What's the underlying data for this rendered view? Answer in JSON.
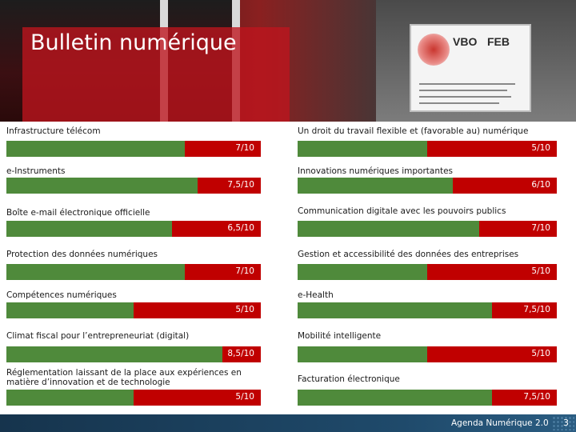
{
  "title": "Bulletin numérique",
  "sign": {
    "left_text": "VBO",
    "right_text": "FEB"
  },
  "colors": {
    "good": "#4f8a3b",
    "gap": "#c00000",
    "footer": "#1f4a6b"
  },
  "scale_max": 10,
  "left_items": [
    {
      "label": "Infrastructure télécom",
      "score": 7,
      "score_label": "7/10"
    },
    {
      "label": "e-Instruments",
      "score": 7.5,
      "score_label": "7,5/10"
    },
    {
      "label": "Boîte e-mail électronique officielle",
      "score": 6.5,
      "score_label": "6,5/10"
    },
    {
      "label": "Protection des données numériques",
      "score": 7,
      "score_label": "7/10"
    },
    {
      "label": "Compétences numériques",
      "score": 5,
      "score_label": "5/10"
    },
    {
      "label": "Climat fiscal pour l’entrepreneuriat (digital)",
      "score": 8.5,
      "score_label": "8,5/10"
    },
    {
      "label": "Réglementation laissant de la place aux expériences en matière d’innovation et de technologie",
      "score": 5,
      "score_label": "5/10"
    }
  ],
  "right_items": [
    {
      "label": "Un droit du travail flexible et (favorable au) numérique",
      "score": 5,
      "score_label": "5/10"
    },
    {
      "label": "Innovations numériques importantes",
      "score": 6,
      "score_label": "6/10"
    },
    {
      "label": "Communication digitale avec les pouvoirs publics",
      "score": 7,
      "score_label": "7/10"
    },
    {
      "label": "Gestion et accessibilité des données des entreprises",
      "score": 5,
      "score_label": "5/10"
    },
    {
      "label": "e-Health",
      "score": 7.5,
      "score_label": "7,5/10"
    },
    {
      "label": "Mobilité intelligente",
      "score": 5,
      "score_label": "5/10"
    },
    {
      "label": "Facturation électronique",
      "score": 7.5,
      "score_label": "7,5/10"
    }
  ],
  "footer": {
    "text": "Agenda Numérique 2.0",
    "page_number": "3"
  }
}
